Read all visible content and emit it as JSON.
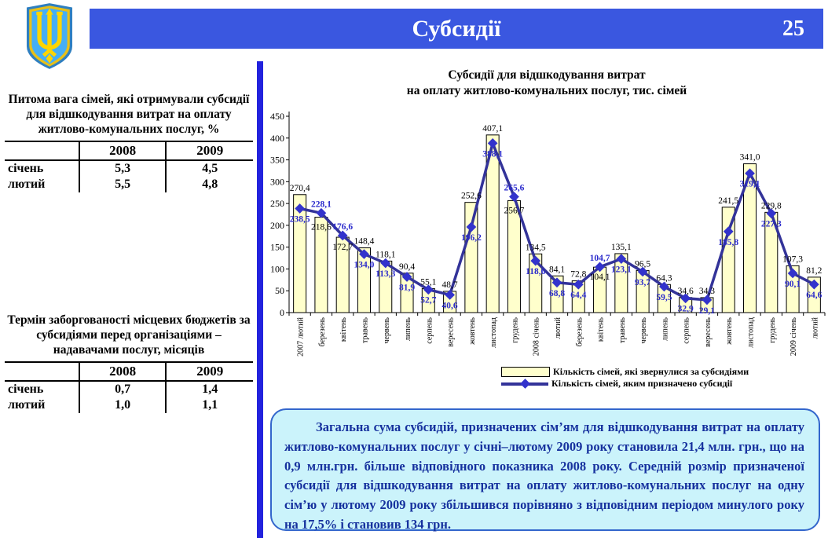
{
  "header": {
    "title": "Субсидії",
    "page_number": "25"
  },
  "left_panel": {
    "table1": {
      "title": "Питома вага сімей, які отримували субсидії для відшкодування витрат на оплату житлово-комунальних послуг, %",
      "columns": [
        "2008",
        "2009"
      ],
      "rows": [
        {
          "label": "січень",
          "values": [
            "5,3",
            "4,5"
          ]
        },
        {
          "label": "лютий",
          "values": [
            "5,5",
            "4,8"
          ]
        }
      ]
    },
    "table2": {
      "title": "Термін заборгованості місцевих бюджетів за субсидіями перед організаціями – надавачами послуг, місяців",
      "columns": [
        "2008",
        "2009"
      ],
      "rows": [
        {
          "label": "січень",
          "values": [
            "0,7",
            "1,4"
          ]
        },
        {
          "label": "лютий",
          "values": [
            "1,0",
            "1,1"
          ]
        }
      ]
    }
  },
  "chart": {
    "title_line1": "Субсидії для відшкодування витрат",
    "title_line2": "на оплату житлово-комунальних послуг, тис. сімей",
    "legend_bar": "Кількість сімей, які звернулися за субсидіями",
    "legend_line": "Кількість сімей, яким призначено субсидії"
  },
  "chart_data": {
    "type": "bar",
    "title": "Субсидії для відшкодування витрат на оплату житлово-комунальних послуг, тис. сімей",
    "categories": [
      "2007 лютий",
      "березень",
      "квітень",
      "травень",
      "червень",
      "липень",
      "серпень",
      "вересень",
      "жовтень",
      "листопад",
      "грудень",
      "2008 січень",
      "лютий",
      "березень",
      "квітень",
      "травень",
      "червень",
      "липень",
      "серпень",
      "вересень",
      "жовтень",
      "листопад",
      "грудень",
      "2009 січень",
      "лютий"
    ],
    "series": [
      {
        "name": "Кількість сімей, які звернулися за субсидіями",
        "type": "bar",
        "values": [
          270.4,
          218.6,
          172.7,
          148.4,
          118.1,
          90.4,
          55.1,
          48.7,
          252.6,
          407.1,
          256.7,
          134.5,
          84.1,
          72.8,
          104.1,
          135.1,
          96.5,
          64.3,
          34.6,
          34.3,
          241.5,
          341.0,
          229.8,
          107.3,
          81.2
        ]
      },
      {
        "name": "Кількість сімей, яким призначено субсидії",
        "type": "line",
        "values": [
          238.5,
          228.1,
          176.6,
          134.0,
          113.3,
          81.9,
          52.7,
          40.6,
          196.2,
          388.1,
          265.6,
          118.6,
          68.8,
          64.4,
          104.7,
          123.1,
          93.7,
          59.5,
          32.9,
          29.1,
          185.8,
          319.1,
          227.3,
          90.1,
          64.6
        ]
      }
    ],
    "xlabel": "",
    "ylabel": "",
    "ylim": [
      0,
      450
    ],
    "ytick_step": 50,
    "grid": false,
    "legend_position": "bottom"
  },
  "note_box": {
    "text": "Загальна сума субсидій, призначених сім’ям для відшкодування витрат на оплату житлово-комунальних послуг у січні–лютому 2009 року становила 21,4 млн. грн., що на 0,9 млн.грн. більше відповідного показника 2008 року. Середній розмір призначеної субсидії для відшкодування витрат на оплату житлово-комунальних послуг на одну сім’ю у лютому 2009 року збільшився порівняно з відповідним періодом минулого року на 17,5% і становив 134 грн."
  },
  "colors": {
    "header_blue": "#3A57E0",
    "divider_blue": "#2222DD",
    "bar_fill": "#FFFFCC",
    "bar_border": "#000000",
    "line_color": "#333399",
    "marker_color": "#3333CC",
    "bar_label_color": "#000000",
    "line_label_color": "#2B2BCC",
    "note_bg": "#CBF3FB",
    "note_border": "#3366CC",
    "note_text": "#16319E",
    "shield_blue": "#45AEF5",
    "trident_yellow": "#FFD500"
  }
}
